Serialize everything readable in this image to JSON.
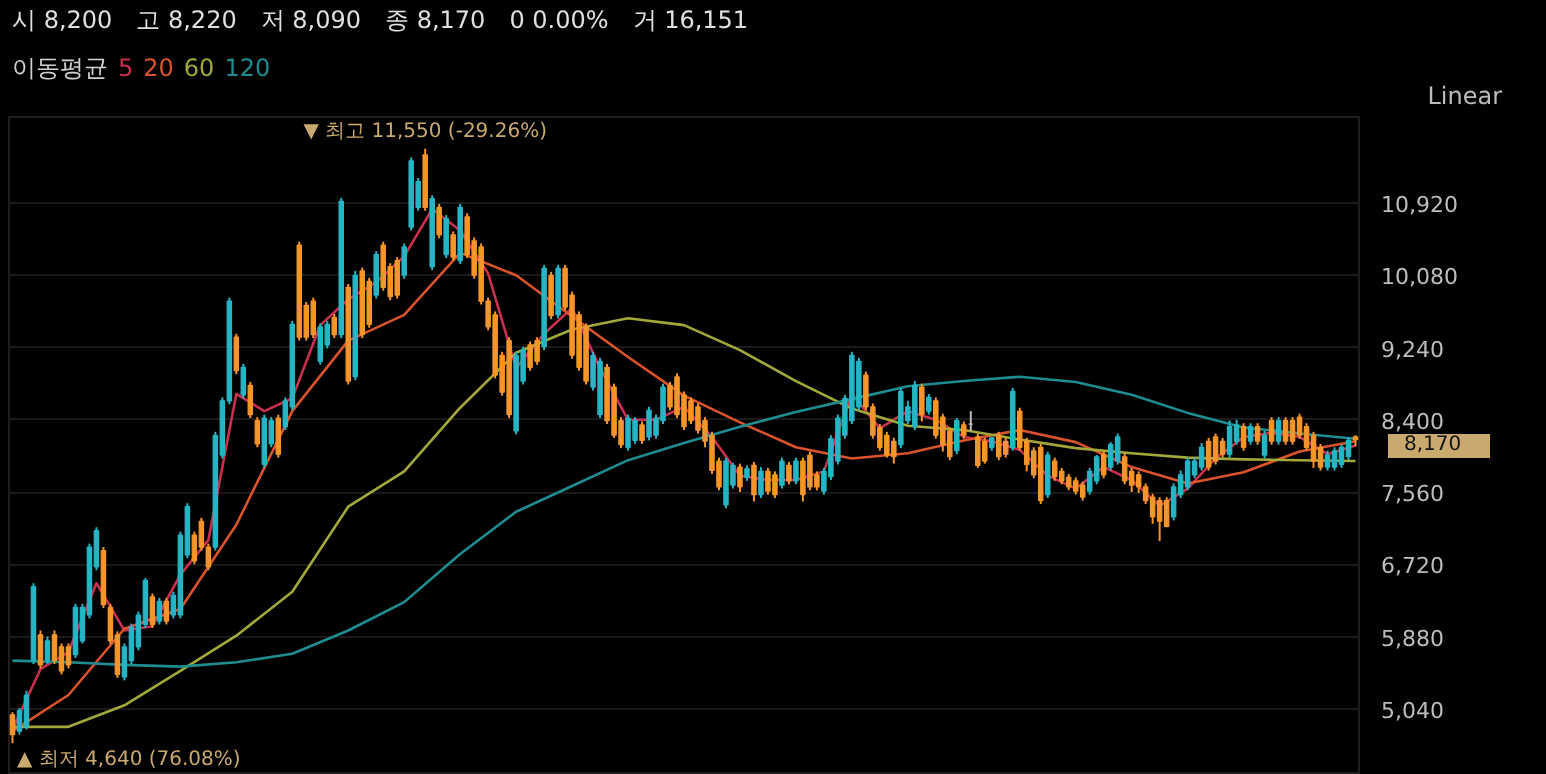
{
  "chart_data": {
    "type": "candlestick",
    "annotations": [
      "시 8,200",
      "고 8,220",
      "저 8,090",
      "종 8,170",
      "0 0.00%",
      "거 16,151",
      "Linear",
      {
        "text": "▼ 최고 11,550 (-29.26%)",
        "y": 11550
      },
      "▲ 최저 4,640 (76.08%)",
      "8,170"
    ],
    "legend_title": "이동평균",
    "legend": "top left",
    "grid": "y",
    "tick_labels": "y",
    "ylim": [
      4270,
      11920
    ],
    "yticks": [
      {
        "value": 5040,
        "label": "5,040"
      },
      {
        "value": 5880,
        "label": "5,880"
      },
      {
        "value": 6720,
        "label": "6,720"
      },
      {
        "value": 7560,
        "label": "7,560"
      },
      {
        "value": 8400,
        "label": "8,400"
      },
      {
        "value": 9240,
        "label": "9,240"
      },
      {
        "value": 10080,
        "label": "10,080"
      },
      {
        "value": 10920,
        "label": "10,920"
      }
    ],
    "categories": [
      null,
      null,
      null,
      null,
      null,
      null,
      null,
      null,
      null,
      null,
      null,
      null,
      null,
      null,
      null,
      null,
      null,
      null,
      null,
      null,
      null,
      null,
      null,
      null,
      null,
      null,
      null,
      null,
      null,
      null,
      null,
      null,
      null,
      null,
      null,
      null,
      null,
      null,
      null,
      null,
      null,
      null,
      null,
      null,
      null,
      null,
      null,
      null,
      null,
      null,
      null,
      null,
      null,
      null,
      null,
      null,
      null,
      null,
      null,
      null,
      null,
      null,
      null,
      null,
      null,
      null,
      null,
      null,
      null,
      null,
      null,
      null,
      null,
      null,
      null,
      null,
      null,
      null,
      null,
      null,
      null,
      null,
      null,
      null,
      null,
      null,
      null,
      null,
      null,
      null,
      null,
      null,
      null,
      null,
      null,
      null,
      null,
      null,
      null,
      null,
      null,
      null,
      null,
      null,
      null,
      null,
      null,
      null,
      null,
      null,
      null,
      null,
      null,
      null,
      null,
      null,
      null,
      null,
      null,
      null,
      null,
      null,
      null,
      null,
      null,
      null,
      null,
      null,
      null,
      null,
      null,
      null,
      null,
      null,
      null,
      null,
      null,
      null,
      null,
      null,
      null,
      null,
      null,
      null,
      null,
      null,
      null,
      null,
      null,
      null,
      null,
      null,
      null,
      null,
      null,
      null,
      null,
      null,
      null,
      null,
      null,
      null,
      null,
      null,
      null,
      null,
      null,
      null,
      null,
      null,
      null,
      null,
      null,
      null,
      null,
      null,
      null,
      null,
      null,
      null,
      null,
      null,
      null,
      null,
      null,
      null,
      null,
      null,
      null,
      null,
      null,
      null,
      null
    ],
    "ohlc": [
      [
        4970,
        5000,
        4640,
        4740
      ],
      [
        4780,
        5050,
        4740,
        5020
      ],
      [
        4830,
        5250,
        4800,
        5200
      ],
      [
        5600,
        6500,
        5560,
        6460
      ],
      [
        5900,
        5950,
        5510,
        5550
      ],
      [
        5600,
        5880,
        5560,
        5830
      ],
      [
        5900,
        5950,
        5560,
        5600
      ],
      [
        5760,
        5800,
        5440,
        5480
      ],
      [
        5760,
        5800,
        5510,
        5550
      ],
      [
        5670,
        6260,
        5630,
        6220
      ],
      [
        5830,
        6260,
        5800,
        6220
      ],
      [
        6130,
        6960,
        6090,
        6920
      ],
      [
        6690,
        7150,
        6650,
        7110
      ],
      [
        6880,
        6920,
        6210,
        6250
      ],
      [
        6220,
        6260,
        5790,
        5830
      ],
      [
        5900,
        5940,
        5400,
        5440
      ],
      [
        5410,
        5800,
        5370,
        5760
      ],
      [
        5600,
        6030,
        5560,
        5990
      ],
      [
        5760,
        6170,
        5720,
        6130
      ],
      [
        6020,
        6560,
        5980,
        6530
      ],
      [
        6340,
        6380,
        5980,
        6020
      ],
      [
        6060,
        6330,
        6020,
        6290
      ],
      [
        6290,
        6330,
        6020,
        6060
      ],
      [
        6130,
        6400,
        6090,
        6360
      ],
      [
        6130,
        7100,
        6090,
        7060
      ],
      [
        6830,
        7430,
        6790,
        7390
      ],
      [
        7060,
        7100,
        6720,
        6760
      ],
      [
        7220,
        7260,
        6880,
        6920
      ],
      [
        6920,
        6960,
        6650,
        6690
      ],
      [
        6920,
        8260,
        6880,
        8220
      ],
      [
        7990,
        8660,
        7950,
        8620
      ],
      [
        8620,
        9820,
        8580,
        9780
      ],
      [
        9360,
        9400,
        8930,
        8970
      ],
      [
        8690,
        9050,
        8650,
        9010
      ],
      [
        8800,
        8840,
        8420,
        8460
      ],
      [
        8390,
        8430,
        8080,
        8120
      ],
      [
        7880,
        8460,
        7840,
        8420
      ],
      [
        8120,
        8430,
        8080,
        8390
      ],
      [
        8420,
        8460,
        7960,
        8000
      ],
      [
        8320,
        8660,
        8280,
        8620
      ],
      [
        8550,
        9550,
        8510,
        9510
      ],
      [
        10430,
        10470,
        9320,
        9360
      ],
      [
        9730,
        9770,
        9320,
        9360
      ],
      [
        9780,
        9820,
        9350,
        9390
      ],
      [
        9080,
        9520,
        9040,
        9480
      ],
      [
        9270,
        9550,
        9230,
        9510
      ],
      [
        9590,
        9630,
        9350,
        9390
      ],
      [
        9390,
        10980,
        9350,
        10940
      ],
      [
        9940,
        9980,
        8810,
        8850
      ],
      [
        8900,
        10130,
        8860,
        10080
      ],
      [
        10130,
        10170,
        9350,
        9390
      ],
      [
        10010,
        10050,
        9470,
        9510
      ],
      [
        9850,
        10360,
        9810,
        10320
      ],
      [
        10430,
        10470,
        9900,
        9940
      ],
      [
        10180,
        10220,
        9790,
        9830
      ],
      [
        10250,
        10290,
        9810,
        9850
      ],
      [
        10080,
        10450,
        10040,
        10410
      ],
      [
        10640,
        11450,
        10600,
        11410
      ],
      [
        10870,
        11210,
        10830,
        11170
      ],
      [
        11480,
        11550,
        10830,
        10870
      ],
      [
        10180,
        11010,
        10140,
        10970
      ],
      [
        10870,
        10910,
        10510,
        10550
      ],
      [
        10320,
        10780,
        10280,
        10740
      ],
      [
        10550,
        10590,
        10250,
        10290
      ],
      [
        10250,
        10910,
        10210,
        10870
      ],
      [
        10760,
        10800,
        10280,
        10320
      ],
      [
        10480,
        10520,
        10040,
        10080
      ],
      [
        10410,
        10450,
        9740,
        9780
      ],
      [
        9780,
        9820,
        9440,
        9480
      ],
      [
        9620,
        9660,
        8880,
        8920
      ],
      [
        9150,
        9190,
        8680,
        8720
      ],
      [
        9320,
        9360,
        8420,
        8460
      ],
      [
        8270,
        9190,
        8230,
        9150
      ],
      [
        8850,
        9250,
        8810,
        9210
      ],
      [
        9270,
        9310,
        8970,
        9010
      ],
      [
        9320,
        9360,
        9040,
        9080
      ],
      [
        9250,
        10200,
        9210,
        10160
      ],
      [
        10080,
        10120,
        9570,
        9610
      ],
      [
        9620,
        10200,
        9580,
        10160
      ],
      [
        10160,
        10200,
        9670,
        9710
      ],
      [
        9850,
        9890,
        9110,
        9150
      ],
      [
        9620,
        9660,
        8970,
        9010
      ],
      [
        9480,
        9520,
        8810,
        8850
      ],
      [
        8780,
        9190,
        8740,
        9150
      ],
      [
        8460,
        9120,
        8420,
        9080
      ],
      [
        9010,
        9050,
        8350,
        8390
      ],
      [
        8780,
        8820,
        8190,
        8220
      ],
      [
        8390,
        8430,
        8070,
        8110
      ],
      [
        8080,
        8460,
        8040,
        8420
      ],
      [
        8160,
        8430,
        8120,
        8390
      ],
      [
        8340,
        8380,
        8120,
        8160
      ],
      [
        8200,
        8550,
        8160,
        8510
      ],
      [
        8220,
        8460,
        8180,
        8420
      ],
      [
        8390,
        8820,
        8350,
        8780
      ],
      [
        8800,
        8840,
        8510,
        8550
      ],
      [
        8900,
        8940,
        8420,
        8460
      ],
      [
        8690,
        8730,
        8280,
        8320
      ],
      [
        8620,
        8660,
        8350,
        8390
      ],
      [
        8550,
        8590,
        8240,
        8280
      ],
      [
        8390,
        8430,
        8080,
        8150
      ],
      [
        8220,
        8260,
        7770,
        7810
      ],
      [
        7920,
        7960,
        7580,
        7620
      ],
      [
        7410,
        7960,
        7370,
        7920
      ],
      [
        7640,
        7900,
        7600,
        7870
      ],
      [
        7850,
        7890,
        7560,
        7620
      ],
      [
        7730,
        7870,
        7690,
        7830
      ],
      [
        7870,
        7910,
        7450,
        7530
      ],
      [
        7530,
        7850,
        7490,
        7800
      ],
      [
        7800,
        7840,
        7530,
        7570
      ],
      [
        7760,
        7800,
        7490,
        7530
      ],
      [
        7640,
        7960,
        7600,
        7920
      ],
      [
        7870,
        7910,
        7650,
        7690
      ],
      [
        7690,
        7960,
        7650,
        7920
      ],
      [
        7920,
        7960,
        7450,
        7530
      ],
      [
        7990,
        8030,
        7580,
        7620
      ],
      [
        7760,
        7800,
        7580,
        7620
      ],
      [
        7570,
        7840,
        7530,
        7800
      ],
      [
        7740,
        8220,
        7700,
        8180
      ],
      [
        7920,
        8460,
        7880,
        8420
      ],
      [
        8220,
        8690,
        8180,
        8650
      ],
      [
        8390,
        9190,
        8350,
        9150
      ],
      [
        8550,
        9120,
        8510,
        9080
      ],
      [
        8920,
        8960,
        8510,
        8550
      ],
      [
        8550,
        8590,
        8180,
        8220
      ],
      [
        8310,
        8350,
        8040,
        8080
      ],
      [
        8220,
        8260,
        7960,
        7990
      ],
      [
        8150,
        8190,
        7890,
        7970
      ],
      [
        8110,
        8770,
        8070,
        8730
      ],
      [
        8390,
        8620,
        8350,
        8550
      ],
      [
        8320,
        8850,
        8280,
        8800
      ],
      [
        8780,
        8820,
        8380,
        8460
      ],
      [
        8500,
        8700,
        8460,
        8660
      ],
      [
        8620,
        8660,
        8180,
        8220
      ],
      [
        8430,
        8470,
        8030,
        8110
      ],
      [
        8270,
        8310,
        7930,
        7970
      ],
      [
        8040,
        8420,
        8000,
        8390
      ],
      [
        8340,
        8380,
        8180,
        8220
      ],
      [
        8350,
        8500,
        8270,
        8350
      ],
      [
        8200,
        8240,
        7840,
        7870
      ],
      [
        8150,
        8190,
        7890,
        7920
      ],
      [
        8080,
        8200,
        8040,
        8190
      ],
      [
        8220,
        8260,
        7930,
        7970
      ],
      [
        8150,
        8190,
        7960,
        8000
      ],
      [
        8080,
        8770,
        8040,
        8730
      ],
      [
        8500,
        8540,
        8040,
        8080
      ],
      [
        8150,
        8190,
        7800,
        7880
      ],
      [
        8040,
        8080,
        7720,
        7760
      ],
      [
        8080,
        8120,
        7420,
        7460
      ],
      [
        7530,
        8030,
        7490,
        7990
      ],
      [
        7920,
        7960,
        7690,
        7740
      ],
      [
        7800,
        7840,
        7650,
        7690
      ],
      [
        7730,
        7770,
        7580,
        7620
      ],
      [
        7690,
        7730,
        7530,
        7570
      ],
      [
        7640,
        7680,
        7460,
        7500
      ],
      [
        7570,
        7840,
        7530,
        7800
      ],
      [
        7690,
        7990,
        7650,
        7970
      ],
      [
        8000,
        8040,
        7720,
        7760
      ],
      [
        7850,
        8140,
        7810,
        8110
      ],
      [
        7920,
        8240,
        7880,
        8200
      ],
      [
        7970,
        8010,
        7650,
        7690
      ],
      [
        7800,
        7840,
        7560,
        7640
      ],
      [
        7760,
        7800,
        7550,
        7620
      ],
      [
        7620,
        7660,
        7420,
        7460
      ],
      [
        7500,
        7540,
        7190,
        7270
      ],
      [
        7460,
        7500,
        6990,
        7220
      ],
      [
        7460,
        7500,
        7150,
        7160
      ],
      [
        7270,
        7660,
        7230,
        7620
      ],
      [
        7530,
        7810,
        7490,
        7760
      ],
      [
        7620,
        7960,
        7580,
        7920
      ],
      [
        7760,
        7960,
        7720,
        7920
      ],
      [
        7850,
        8130,
        7810,
        8080
      ],
      [
        8150,
        8190,
        7810,
        7850
      ],
      [
        8200,
        8240,
        7880,
        7920
      ],
      [
        8150,
        8190,
        7960,
        8000
      ],
      [
        8000,
        8390,
        7960,
        8320
      ],
      [
        8150,
        8400,
        8110,
        8340
      ],
      [
        8320,
        8360,
        8040,
        8080
      ],
      [
        8150,
        8360,
        8110,
        8320
      ],
      [
        8320,
        8360,
        8110,
        8150
      ],
      [
        7990,
        8270,
        7950,
        8220
      ],
      [
        8390,
        8430,
        8110,
        8150
      ],
      [
        8150,
        8430,
        8110,
        8390
      ],
      [
        8390,
        8430,
        8110,
        8150
      ],
      [
        8390,
        8430,
        8110,
        8150
      ],
      [
        8430,
        8470,
        8180,
        8220
      ],
      [
        8320,
        8360,
        8040,
        8080
      ],
      [
        8220,
        8260,
        7840,
        7920
      ],
      [
        8080,
        8120,
        7810,
        7850
      ],
      [
        7850,
        8040,
        7810,
        7990
      ],
      [
        7850,
        8080,
        7810,
        8040
      ],
      [
        7880,
        8110,
        7840,
        8080
      ],
      [
        7970,
        8200,
        7930,
        8160
      ],
      [
        8200,
        8220,
        8090,
        8170
      ]
    ],
    "colors": [
      "#f5952a",
      "#26b5c4",
      "#26b5c4",
      "#26b5c4",
      "#f5952a",
      "#26b5c4",
      "#f5952a",
      "#f5952a",
      "#f5952a",
      "#26b5c4",
      "#26b5c4",
      "#26b5c4",
      "#26b5c4",
      "#f5952a",
      "#f5952a",
      "#f5952a",
      "#26b5c4",
      "#26b5c4",
      "#26b5c4",
      "#26b5c4",
      "#f5952a",
      "#26b5c4",
      "#f5952a",
      "#26b5c4",
      "#26b5c4",
      "#26b5c4",
      "#f5952a",
      "#f5952a",
      "#f5952a",
      "#26b5c4",
      "#26b5c4",
      "#26b5c4",
      "#f5952a",
      "#26b5c4",
      "#f5952a",
      "#f5952a",
      "#26b5c4",
      "#26b5c4",
      "#f5952a",
      "#26b5c4",
      "#26b5c4",
      "#f5952a",
      "#f5952a",
      "#f5952a",
      "#26b5c4",
      "#26b5c4",
      "#f5952a",
      "#26b5c4",
      "#f5952a",
      "#26b5c4",
      "#f5952a",
      "#f5952a",
      "#26b5c4",
      "#f5952a",
      "#f5952a",
      "#f5952a",
      "#26b5c4",
      "#26b5c4",
      "#26b5c4",
      "#f5952a",
      "#26b5c4",
      "#f5952a",
      "#26b5c4",
      "#f5952a",
      "#26b5c4",
      "#f5952a",
      "#f5952a",
      "#f5952a",
      "#f5952a",
      "#f5952a",
      "#f5952a",
      "#f5952a",
      "#26b5c4",
      "#26b5c4",
      "#f5952a",
      "#f5952a",
      "#26b5c4",
      "#f5952a",
      "#26b5c4",
      "#f5952a",
      "#f5952a",
      "#f5952a",
      "#f5952a",
      "#26b5c4",
      "#26b5c4",
      "#f5952a",
      "#f5952a",
      "#f5952a",
      "#26b5c4",
      "#26b5c4",
      "#f5952a",
      "#26b5c4",
      "#26b5c4",
      "#26b5c4",
      "#f5952a",
      "#f5952a",
      "#f5952a",
      "#f5952a",
      "#f5952a",
      "#f5952a",
      "#f5952a",
      "#f5952a",
      "#26b5c4",
      "#26b5c4",
      "#f5952a",
      "#26b5c4",
      "#f5952a",
      "#26b5c4",
      "#f5952a",
      "#f5952a",
      "#26b5c4",
      "#f5952a",
      "#26b5c4",
      "#f5952a",
      "#f5952a",
      "#f5952a",
      "#26b5c4",
      "#26b5c4",
      "#26b5c4",
      "#26b5c4",
      "#26b5c4",
      "#26b5c4",
      "#f5952a",
      "#f5952a",
      "#f5952a",
      "#f5952a",
      "#f5952a",
      "#26b5c4",
      "#26b5c4",
      "#26b5c4",
      "#f5952a",
      "#26b5c4",
      "#f5952a",
      "#f5952a",
      "#f5952a",
      "#26b5c4",
      "#f5952a",
      "#bfbfbf",
      "#f5952a",
      "#f5952a",
      "#26b5c4",
      "#f5952a",
      "#f5952a",
      "#26b5c4",
      "#f5952a",
      "#f5952a",
      "#f5952a",
      "#f5952a",
      "#26b5c4",
      "#f5952a",
      "#f5952a",
      "#f5952a",
      "#f5952a",
      "#f5952a",
      "#26b5c4",
      "#26b5c4",
      "#f5952a",
      "#26b5c4",
      "#26b5c4",
      "#f5952a",
      "#f5952a",
      "#f5952a",
      "#f5952a",
      "#f5952a",
      "#f5952a",
      "#f5952a",
      "#26b5c4",
      "#26b5c4",
      "#26b5c4",
      "#26b5c4",
      "#26b5c4",
      "#f5952a",
      "#f5952a",
      "#f5952a",
      "#26b5c4",
      "#26b5c4",
      "#f5952a",
      "#26b5c4",
      "#f5952a",
      "#26b5c4",
      "#f5952a",
      "#26b5c4",
      "#f5952a",
      "#f5952a",
      "#f5952a",
      "#f5952a",
      "#f5952a",
      "#f5952a",
      "#26b5c4",
      "#26b5c4",
      "#26b5c4",
      "#26b5c4",
      "#f5952a"
    ],
    "series": [
      {
        "name": "5",
        "type": "line",
        "color": "#c8304e",
        "values": [
          4800,
          null,
          null,
          null,
          5500,
          null,
          null,
          null,
          5700,
          null,
          null,
          null,
          6500,
          null,
          null,
          null,
          5950,
          null,
          null,
          null,
          6000,
          null,
          null,
          null,
          6600,
          null,
          null,
          null,
          7000,
          null,
          null,
          null,
          8700,
          null,
          null,
          null,
          8500,
          null,
          null,
          null,
          8650,
          null,
          null,
          null,
          9500,
          null,
          null,
          null,
          9800,
          null,
          null,
          null,
          10000,
          null,
          null,
          null,
          10300,
          null,
          null,
          null,
          10850,
          null,
          null,
          null,
          10600,
          null,
          null,
          null,
          10100,
          null,
          null,
          null,
          9000,
          null,
          null,
          null,
          9400,
          null,
          null,
          null,
          9700,
          null,
          null,
          null,
          9000,
          null,
          null,
          null,
          8400,
          null,
          null,
          null,
          8400,
          null,
          null,
          null,
          8550,
          null,
          null,
          null,
          8200,
          null,
          null,
          null,
          7750,
          null,
          null,
          null,
          7700,
          null,
          null,
          null,
          7700,
          null,
          null,
          null,
          7800,
          null,
          null,
          null,
          8700,
          null,
          null,
          null,
          8300,
          null,
          null,
          null,
          8500,
          null,
          null,
          null,
          8400,
          null,
          null,
          null,
          8200,
          null,
          null,
          null,
          8150,
          null,
          null,
          null,
          8050,
          null,
          null,
          null,
          7750,
          null,
          null,
          null,
          7600,
          null,
          null,
          null,
          7850,
          null,
          null,
          null,
          7700,
          null,
          null,
          null,
          7400,
          null,
          null,
          null,
          7600,
          null,
          null,
          null,
          7950,
          null,
          null,
          null,
          8200,
          null,
          null,
          null,
          8250,
          null,
          null,
          null,
          8200,
          null,
          null,
          null,
          8000,
          null,
          null,
          null,
          8100
        ]
      },
      {
        "name": "20",
        "type": "line",
        "color": "#d9532c",
        "values": [
          4780,
          null,
          null,
          null,
          null,
          null,
          null,
          null,
          5200,
          null,
          null,
          null,
          null,
          null,
          null,
          null,
          5970,
          null,
          null,
          null,
          null,
          null,
          null,
          null,
          6200,
          null,
          null,
          null,
          null,
          null,
          null,
          null,
          7180,
          null,
          null,
          null,
          null,
          null,
          null,
          null,
          8500,
          null,
          null,
          null,
          null,
          null,
          null,
          null,
          9320,
          null,
          null,
          null,
          null,
          null,
          null,
          null,
          9620,
          null,
          null,
          null,
          null,
          null,
          null,
          null,
          10340,
          null,
          null,
          null,
          null,
          null,
          null,
          null,
          10080,
          null,
          null,
          null,
          null,
          null,
          null,
          null,
          9600,
          null,
          null,
          null,
          null,
          null,
          null,
          null,
          9130,
          null,
          null,
          null,
          null,
          null,
          null,
          null,
          8680,
          null,
          null,
          null,
          null,
          null,
          null,
          null,
          8370,
          null,
          null,
          null,
          null,
          null,
          null,
          null,
          8080,
          null,
          null,
          null,
          null,
          null,
          null,
          null,
          7950,
          null,
          null,
          null,
          null,
          null,
          null,
          null,
          8010,
          null,
          null,
          null,
          null,
          null,
          null,
          null,
          8160,
          null,
          null,
          null,
          null,
          null,
          null,
          null,
          8280,
          null,
          null,
          null,
          null,
          null,
          null,
          null,
          8140,
          null,
          null,
          null,
          null,
          null,
          null,
          null,
          7850,
          null,
          null,
          null,
          null,
          null,
          null,
          null,
          7660,
          null,
          null,
          null,
          null,
          null,
          null,
          null,
          7790,
          null,
          null,
          null,
          null,
          null,
          null,
          null,
          8030,
          null,
          null,
          null,
          null,
          null,
          null,
          null,
          8150
        ]
      },
      {
        "name": "60",
        "type": "line",
        "color": "#a3a83a",
        "values": [
          4830,
          null,
          null,
          null,
          null,
          null,
          null,
          null,
          4830,
          null,
          null,
          null,
          null,
          null,
          null,
          null,
          5080,
          null,
          null,
          null,
          null,
          null,
          null,
          null,
          5480,
          null,
          null,
          null,
          null,
          null,
          null,
          null,
          5890,
          null,
          null,
          null,
          null,
          null,
          null,
          null,
          6400,
          null,
          null,
          null,
          null,
          null,
          null,
          null,
          7390,
          null,
          null,
          null,
          null,
          null,
          null,
          null,
          7800,
          null,
          null,
          null,
          null,
          null,
          null,
          null,
          8540,
          null,
          null,
          null,
          null,
          null,
          null,
          null,
          9180,
          null,
          null,
          null,
          null,
          null,
          null,
          null,
          9450,
          null,
          null,
          null,
          null,
          null,
          null,
          null,
          9580,
          null,
          null,
          null,
          null,
          null,
          null,
          null,
          9500,
          null,
          null,
          null,
          null,
          null,
          null,
          null,
          9210,
          null,
          null,
          null,
          null,
          null,
          null,
          null,
          8850,
          null,
          null,
          null,
          null,
          null,
          null,
          null,
          8530,
          null,
          null,
          null,
          null,
          null,
          null,
          null,
          8330,
          null,
          null,
          null,
          null,
          null,
          null,
          null,
          8280,
          null,
          null,
          null,
          null,
          null,
          null,
          null,
          8170,
          null,
          null,
          null,
          null,
          null,
          null,
          null,
          8070,
          null,
          null,
          null,
          null,
          null,
          null,
          null,
          8010,
          null,
          null,
          null,
          null,
          null,
          null,
          null,
          7960,
          null,
          null,
          null,
          null,
          null,
          null,
          null,
          7940,
          null,
          null,
          null,
          null,
          null,
          null,
          null,
          7930,
          null,
          null,
          null,
          null,
          null,
          null,
          null,
          7920
        ]
      },
      {
        "name": "120",
        "type": "line",
        "color": "#1e8c91",
        "values": [
          5600,
          null,
          null,
          null,
          null,
          null,
          null,
          null,
          5580,
          null,
          null,
          null,
          null,
          null,
          null,
          null,
          5550,
          null,
          null,
          null,
          null,
          null,
          null,
          null,
          5530,
          null,
          null,
          null,
          null,
          null,
          null,
          null,
          5580,
          null,
          null,
          null,
          null,
          null,
          null,
          null,
          5680,
          null,
          null,
          null,
          null,
          null,
          null,
          null,
          5950,
          null,
          null,
          null,
          null,
          null,
          null,
          null,
          6280,
          null,
          null,
          null,
          null,
          null,
          null,
          null,
          6840,
          null,
          null,
          null,
          null,
          null,
          null,
          null,
          7330,
          null,
          null,
          null,
          null,
          null,
          null,
          null,
          7630,
          null,
          null,
          null,
          null,
          null,
          null,
          null,
          7930,
          null,
          null,
          null,
          null,
          null,
          null,
          null,
          8130,
          null,
          null,
          null,
          null,
          null,
          null,
          null,
          8320,
          null,
          null,
          null,
          null,
          null,
          null,
          null,
          8490,
          null,
          null,
          null,
          null,
          null,
          null,
          null,
          8640,
          null,
          null,
          null,
          null,
          null,
          null,
          null,
          8790,
          null,
          null,
          null,
          null,
          null,
          null,
          null,
          8850,
          null,
          null,
          null,
          null,
          null,
          null,
          null,
          8900,
          null,
          null,
          null,
          null,
          null,
          null,
          null,
          8840,
          null,
          null,
          null,
          null,
          null,
          null,
          null,
          8690,
          null,
          null,
          null,
          null,
          null,
          null,
          null,
          8480,
          null,
          null,
          null,
          null,
          null,
          null,
          null,
          8310,
          null,
          null,
          null,
          null,
          null,
          null,
          null,
          8240,
          null,
          null,
          null,
          null,
          null,
          null,
          null,
          8180
        ]
      }
    ]
  }
}
